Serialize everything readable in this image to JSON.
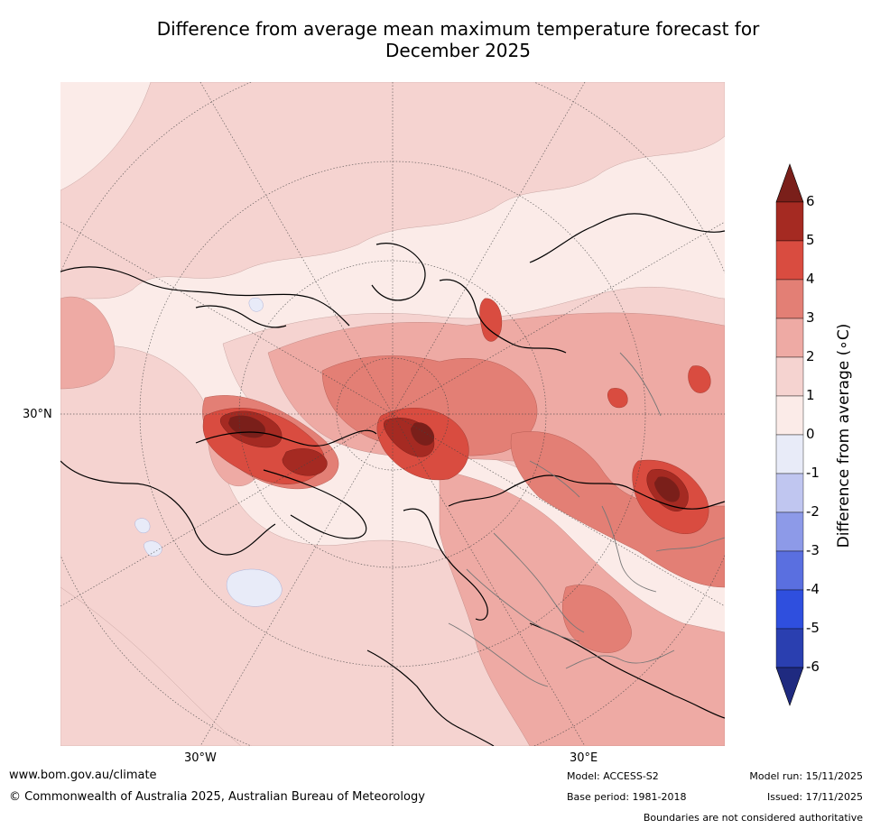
{
  "title_line1": "Difference from average mean maximum temperature forecast for",
  "title_line2": "December 2025",
  "map": {
    "lat_label": "30°N",
    "lon_labels": [
      "30°W",
      "30°E"
    ]
  },
  "colorbar": {
    "title": "Difference from average (∘C)",
    "tick_labels": [
      "6",
      "5",
      "4",
      "3",
      "2",
      "1",
      "0",
      "-1",
      "-2",
      "-3",
      "-4",
      "-5",
      "-6"
    ],
    "bins": [
      {
        "from": 5,
        "to": 6,
        "color": "#a52a22"
      },
      {
        "from": 4,
        "to": 5,
        "color": "#d94c40"
      },
      {
        "from": 3,
        "to": 4,
        "color": "#e37f75"
      },
      {
        "from": 2,
        "to": 3,
        "color": "#eeaaa4"
      },
      {
        "from": 1,
        "to": 2,
        "color": "#f5d3d0"
      },
      {
        "from": 0,
        "to": 1,
        "color": "#fbebe8"
      },
      {
        "from": -1,
        "to": 0,
        "color": "#e8ebf8"
      },
      {
        "from": -2,
        "to": -1,
        "color": "#c0c6f0"
      },
      {
        "from": -3,
        "to": -2,
        "color": "#8d9ae8"
      },
      {
        "from": -4,
        "to": -3,
        "color": "#5a6fe0"
      },
      {
        "from": -5,
        "to": -4,
        "color": "#2f4fde"
      },
      {
        "from": -6,
        "to": -5,
        "color": "#2a3fb0"
      }
    ],
    "over_color": "#7a1f1a",
    "under_color": "#1f2a80"
  },
  "footer": {
    "website": "www.bom.gov.au/climate",
    "copyright": "© Commonwealth of Australia 2025, Australian Bureau of Meteorology",
    "model": "Model: ACCESS-S2",
    "base_period": "Base period: 1981-2018",
    "model_run": "Model run: 15/11/2025",
    "issued": "Issued: 17/11/2025",
    "disclaimer": "Boundaries are not considered authoritative"
  }
}
